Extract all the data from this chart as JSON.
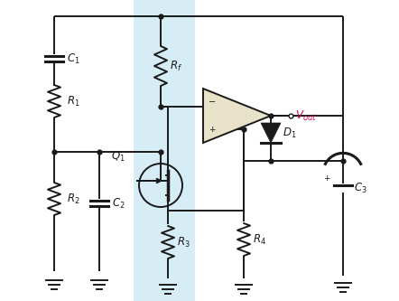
{
  "bg_color": "#ffffff",
  "highlight_color": "#a8d8ea",
  "highlight_alpha": 0.45,
  "wire_color": "#1a1a1a",
  "opamp_fill": "#e8e2c8",
  "label_color_normal": "#1a1a1a",
  "label_color_vout": "#cc0055",
  "figsize": [
    4.42,
    3.33
  ],
  "dpi": 100
}
